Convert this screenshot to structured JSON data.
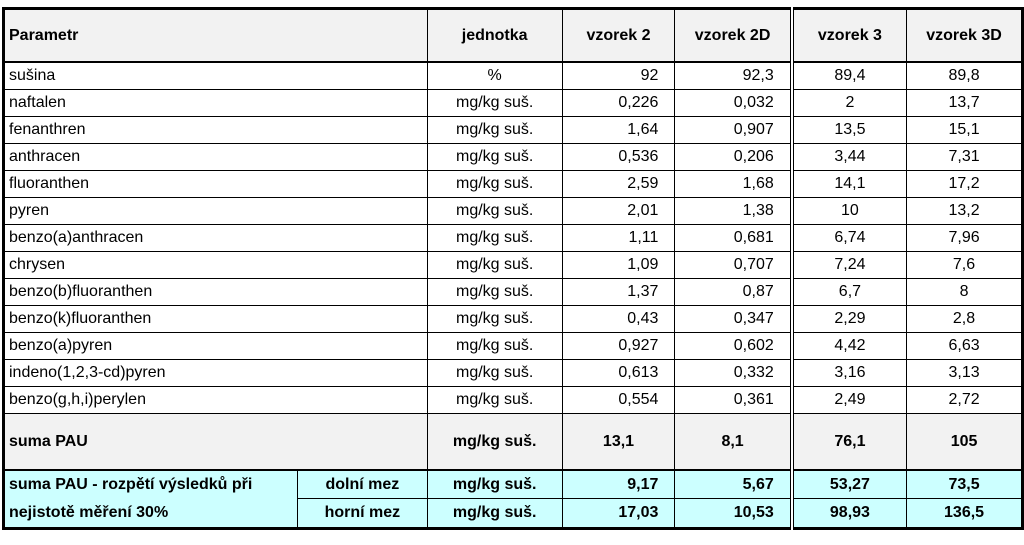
{
  "table": {
    "header": [
      "Parametr",
      "jednotka",
      "vzorek 2",
      "vzorek 2D",
      "vzorek 3",
      "vzorek 3D"
    ],
    "rows": [
      [
        "sušina",
        "%",
        "92",
        "92,3",
        "89,4",
        "89,8"
      ],
      [
        "naftalen",
        "mg/kg suš.",
        "0,226",
        "0,032",
        "2",
        "13,7"
      ],
      [
        "fenanthren",
        "mg/kg suš.",
        "1,64",
        "0,907",
        "13,5",
        "15,1"
      ],
      [
        "anthracen",
        "mg/kg suš.",
        "0,536",
        "0,206",
        "3,44",
        "7,31"
      ],
      [
        "fluoranthen",
        "mg/kg suš.",
        "2,59",
        "1,68",
        "14,1",
        "17,2"
      ],
      [
        "pyren",
        "mg/kg suš.",
        "2,01",
        "1,38",
        "10",
        "13,2"
      ],
      [
        "benzo(a)anthracen",
        "mg/kg suš.",
        "1,11",
        "0,681",
        "6,74",
        "7,96"
      ],
      [
        "chrysen",
        "mg/kg suš.",
        "1,09",
        "0,707",
        "7,24",
        "7,6"
      ],
      [
        "benzo(b)fluoranthen",
        "mg/kg suš.",
        "1,37",
        "0,87",
        "6,7",
        "8"
      ],
      [
        "benzo(k)fluoranthen",
        "mg/kg suš.",
        "0,43",
        "0,347",
        "2,29",
        "2,8"
      ],
      [
        "benzo(a)pyren",
        "mg/kg suš.",
        "0,927",
        "0,602",
        "4,42",
        "6,63"
      ],
      [
        "indeno(1,2,3-cd)pyren",
        "mg/kg suš.",
        "0,613",
        "0,332",
        "3,16",
        "3,13"
      ],
      [
        "benzo(g,h,i)perylen",
        "mg/kg suš.",
        "0,554",
        "0,361",
        "2,49",
        "2,72"
      ]
    ],
    "sum": [
      "suma PAU",
      "mg/kg suš.",
      "13,1",
      "8,1",
      "76,1",
      "105"
    ],
    "range": {
      "label": [
        "suma PAU - rozpětí výsledků při",
        "nejistotě měření 30%"
      ],
      "rows": [
        [
          "dolní mez",
          "mg/kg suš.",
          "9,17",
          "5,67",
          "53,27",
          "73,5"
        ],
        [
          "horní mez",
          "mg/kg suš.",
          "17,03",
          "10,53",
          "98,93",
          "136,5"
        ]
      ]
    }
  }
}
